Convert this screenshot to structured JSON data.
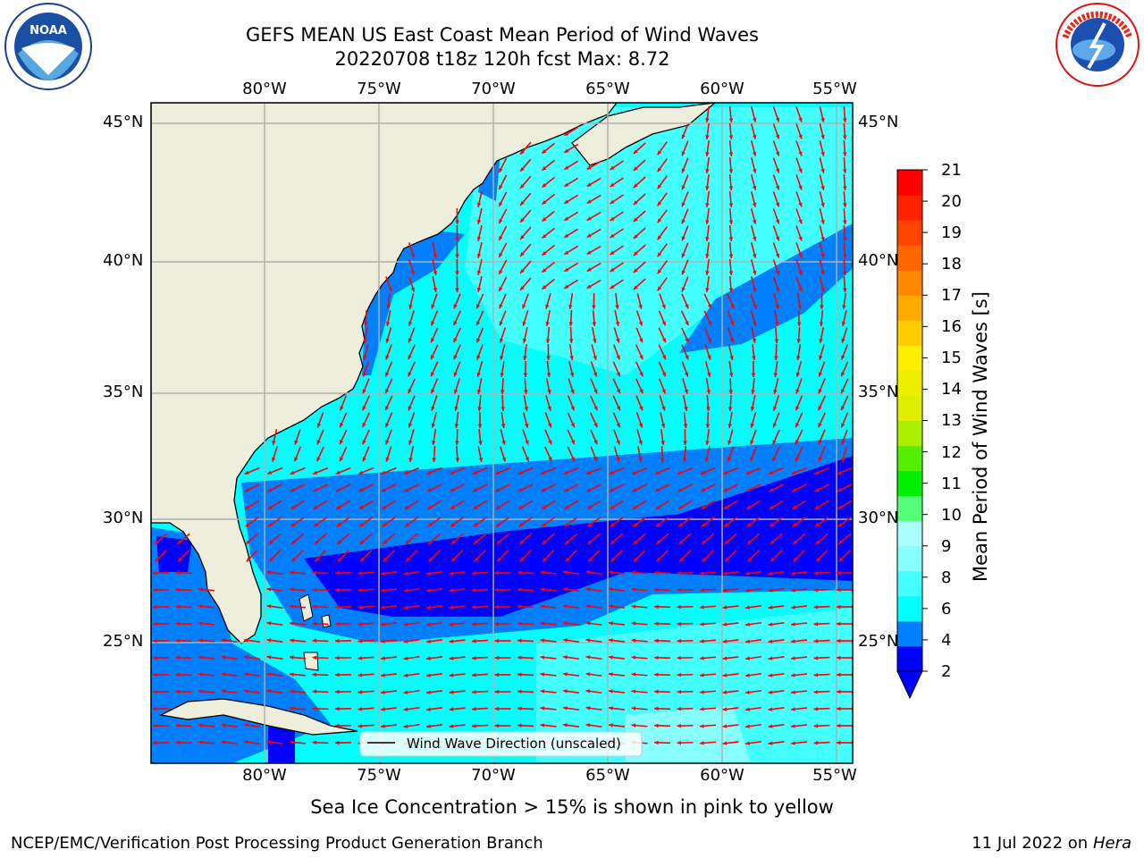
{
  "header": {
    "title_line1": "GEFS MEAN US East Coast Mean Period of Wind Waves",
    "title_line2": "20220708 t18z 120h fcst   Max: 8.72"
  },
  "logos": {
    "left": {
      "text": "NOAA",
      "icon": "noaa-logo-icon"
    },
    "right": {
      "text": "NATIONAL WEATHER SERVICE",
      "icon": "nws-logo-icon"
    }
  },
  "map": {
    "lon_labels": [
      "80°W",
      "75°W",
      "70°W",
      "65°W",
      "60°W",
      "55°W"
    ],
    "lat_labels": [
      "45°N",
      "40°N",
      "35°N",
      "30°N",
      "25°N"
    ],
    "land_color": "#efeedc",
    "arrow_color": "#ff0000",
    "grid_color": "#b0b0b0",
    "legend_label": "Wind Wave Direction (unscaled)"
  },
  "colorbar": {
    "label": "Mean Period of Wind Waves [s]",
    "ticks": [
      "21",
      "20",
      "19",
      "18",
      "17",
      "16",
      "15",
      "14",
      "13",
      "12",
      "11",
      "10",
      "9",
      "8",
      "6",
      "4",
      "2"
    ],
    "colors": [
      "#0000ff",
      "#0080ff",
      "#00ffff",
      "#44ffff",
      "#88ffff",
      "#aaffff",
      "#55ff77",
      "#00ee00",
      "#55ee00",
      "#aaee00",
      "#ddee00",
      "#eeee00",
      "#ffee00",
      "#ffcc00",
      "#ffaa00",
      "#ff8800",
      "#ff6600",
      "#ff4400",
      "#ff2200",
      "#ff0000"
    ]
  },
  "footer": {
    "subtitle": "Sea Ice Concentration > 15% is shown in pink to yellow",
    "credit": "NCEP/EMC/Verification Post Processing Product Generation Branch",
    "date_text": "11 Jul 2022 on ",
    "machine": "Hera"
  }
}
